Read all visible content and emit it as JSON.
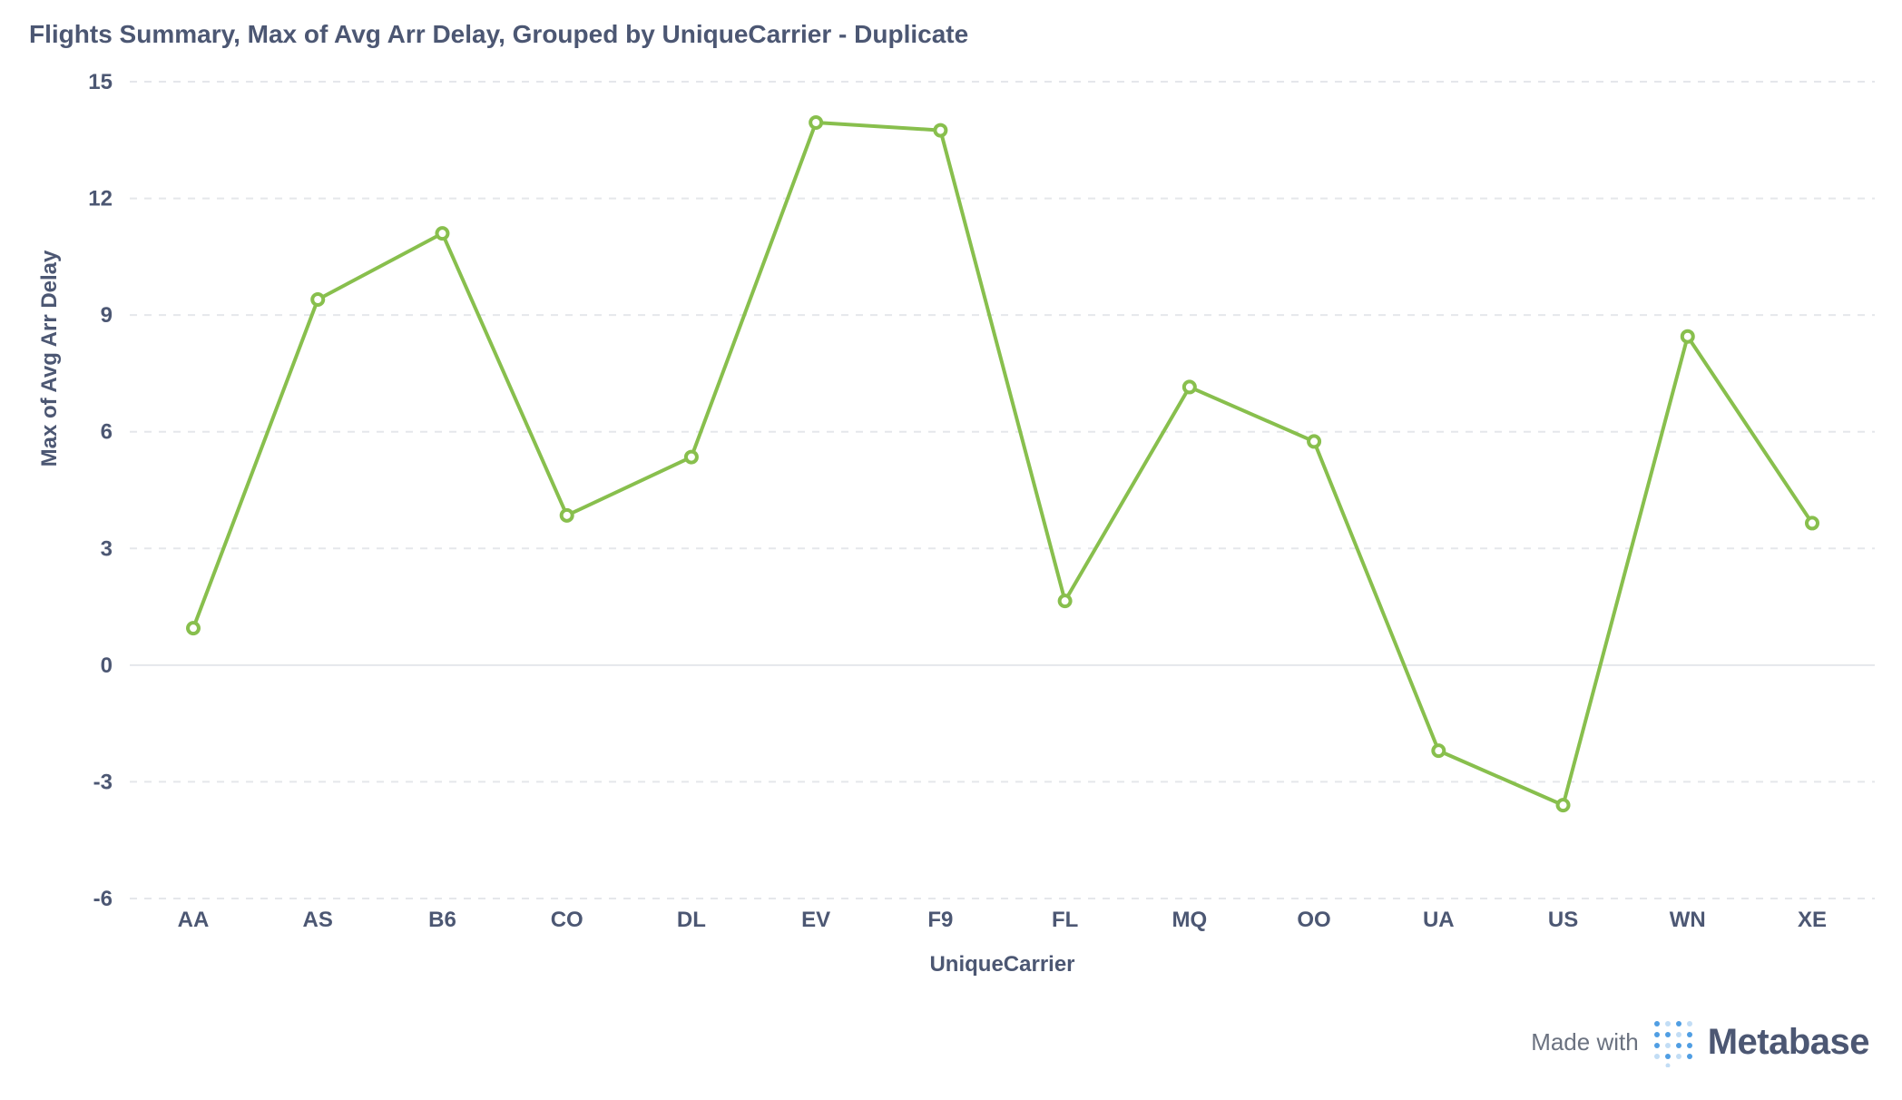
{
  "title": "Flights Summary, Max of Avg Arr Delay, Grouped by UniqueCarrier - Duplicate",
  "footer": {
    "made_with": "Made with",
    "brand": "Metabase",
    "logo_icon": "metabase-logo-icon"
  },
  "colors": {
    "series": "#88bf4d",
    "text": "#4c5773",
    "grid": "#e5e7eb"
  },
  "chart_data": {
    "type": "line",
    "title": "Flights Summary, Max of Avg Arr Delay, Grouped by UniqueCarrier - Duplicate",
    "xlabel": "UniqueCarrier",
    "ylabel": "Max of Avg Arr Delay",
    "ylim": [
      -6,
      15
    ],
    "yticks": [
      15,
      12,
      9,
      6,
      3,
      0,
      -3,
      -6
    ],
    "grid": true,
    "categories": [
      "AA",
      "AS",
      "B6",
      "CO",
      "DL",
      "EV",
      "F9",
      "FL",
      "MQ",
      "OO",
      "UA",
      "US",
      "WN",
      "XE"
    ],
    "series": [
      {
        "values": [
          0.95,
          9.4,
          11.1,
          3.85,
          5.35,
          13.95,
          13.75,
          1.65,
          7.15,
          5.75,
          -2.2,
          -3.6,
          8.45,
          3.65
        ]
      }
    ]
  }
}
